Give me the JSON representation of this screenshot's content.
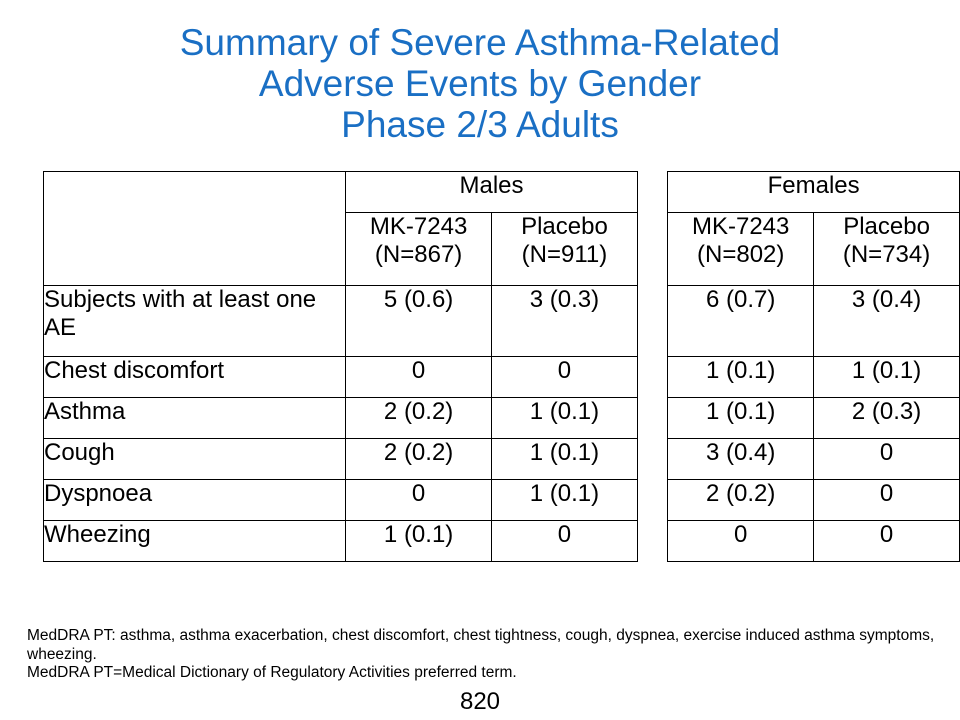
{
  "title": {
    "line1": "Summary of Severe Asthma-Related",
    "line2": "Adverse Events by Gender",
    "line3": "Phase 2/3 Adults"
  },
  "table": {
    "groups": [
      "Males",
      "Females"
    ],
    "columns": [
      {
        "name": "MK-7243",
        "n": "(N=867)"
      },
      {
        "name": "Placebo",
        "n": "(N=911)"
      },
      {
        "name": "MK-7243",
        "n": "(N=802)"
      },
      {
        "name": "Placebo",
        "n": "(N=734)"
      }
    ],
    "rows": [
      {
        "label": "Subjects with at least one AE",
        "values": [
          "5 (0.6)",
          "3 (0.3)",
          "6 (0.7)",
          "3 (0.4)"
        ]
      },
      {
        "label": "Chest discomfort",
        "values": [
          "0",
          "0",
          "1 (0.1)",
          "1 (0.1)"
        ]
      },
      {
        "label": "Asthma",
        "values": [
          "2 (0.2)",
          "1 (0.1)",
          "1 (0.1)",
          "2 (0.3)"
        ]
      },
      {
        "label": "Cough",
        "values": [
          "2 (0.2)",
          "1 (0.1)",
          "3 (0.4)",
          "0"
        ]
      },
      {
        "label": "Dyspnoea",
        "values": [
          "0",
          "1 (0.1)",
          "2 (0.2)",
          "0"
        ]
      },
      {
        "label": "Wheezing",
        "values": [
          "1 (0.1)",
          "0",
          "0",
          "0"
        ]
      }
    ]
  },
  "footnotes": [
    "MedDRA PT: asthma, asthma exacerbation, chest discomfort, chest tightness, cough, dyspnea, exercise induced asthma symptoms, wheezing.",
    "MedDRA PT=Medical Dictionary of Regulatory Activities preferred term."
  ],
  "page_number": "820",
  "colors": {
    "title": "#1a6fc4"
  }
}
